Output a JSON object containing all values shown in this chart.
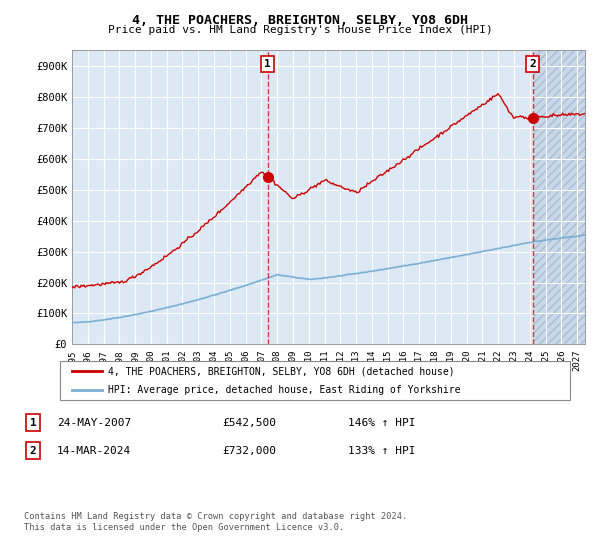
{
  "title": "4, THE POACHERS, BREIGHTON, SELBY, YO8 6DH",
  "subtitle": "Price paid vs. HM Land Registry's House Price Index (HPI)",
  "bg_color": "#dce9f5",
  "grid_color": "#ffffff",
  "red_line_color": "#cc0000",
  "blue_line_color": "#7bafd4",
  "marker_color": "#cc0000",
  "sale1_x": 2007.39,
  "sale1_y": 542500,
  "sale2_x": 2024.2,
  "sale2_y": 732000,
  "xmin": 1995.0,
  "xmax": 2027.5,
  "ymin": 0,
  "ymax": 950000,
  "yticks": [
    0,
    100000,
    200000,
    300000,
    400000,
    500000,
    600000,
    700000,
    800000,
    900000
  ],
  "ytick_labels": [
    "£0",
    "£100K",
    "£200K",
    "£300K",
    "£400K",
    "£500K",
    "£600K",
    "£700K",
    "£800K",
    "£900K"
  ],
  "xticks": [
    1995,
    1996,
    1997,
    1998,
    1999,
    2000,
    2001,
    2002,
    2003,
    2004,
    2005,
    2006,
    2007,
    2008,
    2009,
    2010,
    2011,
    2012,
    2013,
    2014,
    2015,
    2016,
    2017,
    2018,
    2019,
    2020,
    2021,
    2022,
    2023,
    2024,
    2025,
    2026,
    2027
  ],
  "legend_red_label": "4, THE POACHERS, BREIGHTON, SELBY, YO8 6DH (detached house)",
  "legend_blue_label": "HPI: Average price, detached house, East Riding of Yorkshire",
  "note1_label": "1",
  "note1_date": "24-MAY-2007",
  "note1_price": "£542,500",
  "note1_hpi": "146% ↑ HPI",
  "note2_label": "2",
  "note2_date": "14-MAR-2024",
  "note2_price": "£732,000",
  "note2_hpi": "133% ↑ HPI",
  "footer": "Contains HM Land Registry data © Crown copyright and database right 2024.\nThis data is licensed under the Open Government Licence v3.0."
}
